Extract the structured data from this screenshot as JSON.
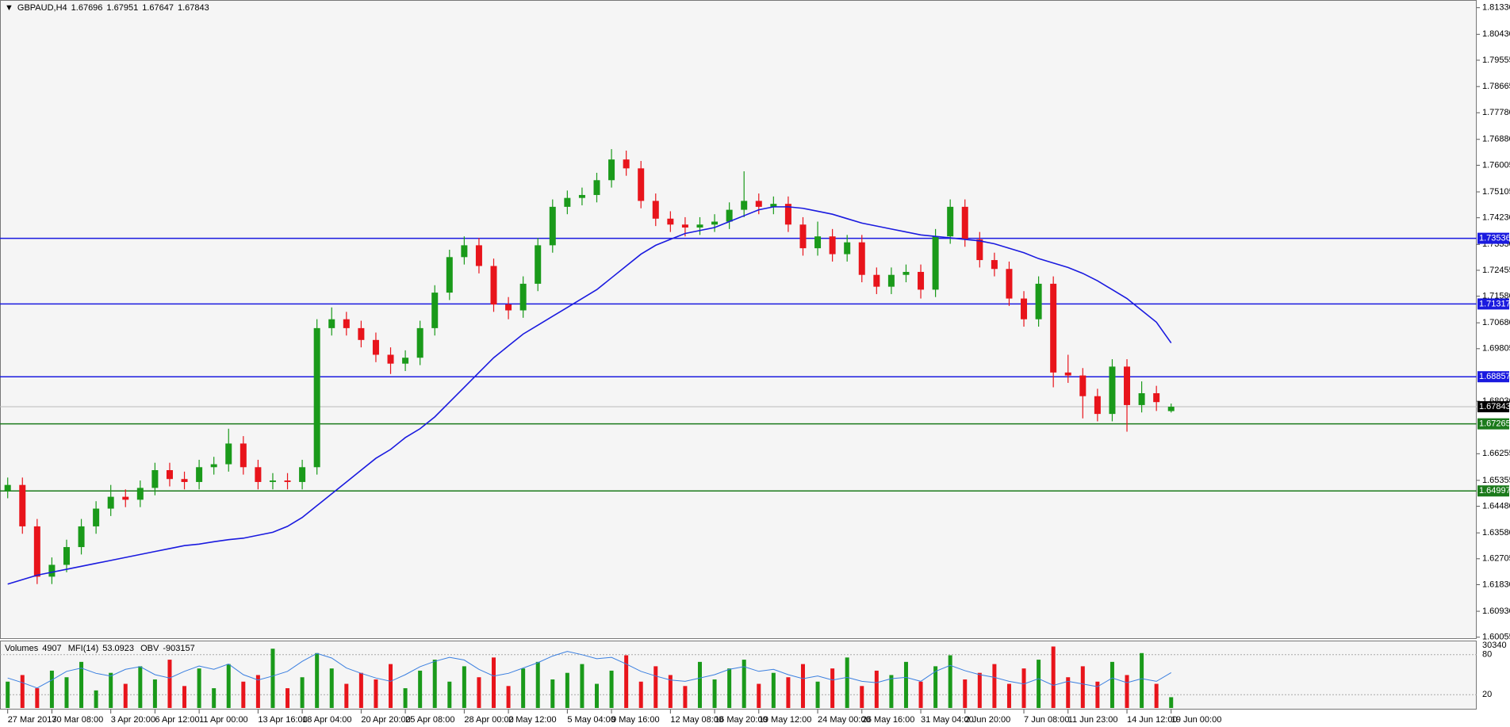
{
  "chart_data": {
    "type": "candlestick",
    "title": "GBPAUD,H4",
    "x": [
      "27 Mar 2017",
      null,
      null,
      "30 Mar 08:00",
      null,
      null,
      null,
      "3 Apr 20:00",
      null,
      null,
      "6 Apr 12:00",
      null,
      null,
      "11 Apr 00:00",
      null,
      null,
      null,
      "13 Apr 16:00",
      null,
      null,
      "18 Apr 04:00",
      null,
      null,
      null,
      "20 Apr 20:00",
      null,
      null,
      "25 Apr 08:00",
      null,
      null,
      null,
      "28 Apr 00:00",
      null,
      null,
      "2 May 12:00",
      null,
      null,
      null,
      "5 May 04:00",
      null,
      null,
      "9 May 16:00",
      null,
      null,
      null,
      "12 May 08:00",
      null,
      null,
      "16 May 20:00",
      null,
      null,
      "19 May 12:00",
      null,
      null,
      null,
      "24 May 00:00",
      null,
      null,
      "26 May 16:00",
      null,
      null,
      null,
      "31 May 04:00",
      null,
      null,
      "2 Jun 20:00",
      null,
      null,
      null,
      "7 Jun 08:00",
      null,
      null,
      "11 Jun 23:00",
      null,
      null,
      null,
      "14 Jun 12:00",
      null,
      null,
      "19 Jun 00:00"
    ],
    "open": [
      1.65,
      1.652,
      1.638,
      1.621,
      1.625,
      1.631,
      1.638,
      1.644,
      1.648,
      1.647,
      1.651,
      1.657,
      1.654,
      1.653,
      1.658,
      1.659,
      1.666,
      1.658,
      1.653,
      1.6535,
      1.653,
      1.658,
      1.705,
      1.708,
      1.705,
      1.701,
      1.696,
      1.693,
      1.695,
      1.705,
      1.717,
      1.729,
      1.733,
      1.726,
      1.713,
      1.711,
      1.72,
      1.733,
      1.746,
      1.749,
      1.75,
      1.755,
      1.762,
      1.759,
      1.748,
      1.742,
      1.74,
      1.739,
      1.74,
      1.741,
      1.745,
      1.748,
      1.746,
      1.747,
      1.74,
      1.732,
      1.736,
      1.73,
      1.734,
      1.723,
      1.719,
      1.723,
      1.724,
      1.718,
      1.736,
      1.746,
      1.735,
      1.728,
      1.725,
      1.715,
      1.708,
      1.72,
      1.69,
      1.689,
      1.682,
      1.676,
      1.692,
      1.679,
      1.683,
      1.67696
    ],
    "high": [
      1.6545,
      1.6545,
      1.6405,
      1.6275,
      1.6335,
      1.6405,
      1.6465,
      1.652,
      1.6505,
      1.6535,
      1.6595,
      1.6595,
      1.6565,
      1.6605,
      1.6615,
      1.671,
      1.6685,
      1.6605,
      1.656,
      1.656,
      1.6605,
      1.708,
      1.712,
      1.7105,
      1.7075,
      1.7035,
      1.6985,
      1.6975,
      1.7075,
      1.7195,
      1.7315,
      1.736,
      1.7355,
      1.7285,
      1.7155,
      1.7225,
      1.7355,
      1.7485,
      1.7515,
      1.7525,
      1.7575,
      1.7655,
      1.765,
      1.7615,
      1.7505,
      1.7445,
      1.7425,
      1.7425,
      1.7435,
      1.7475,
      1.758,
      1.7505,
      1.7495,
      1.7495,
      1.7425,
      1.741,
      1.7385,
      1.7365,
      1.7365,
      1.7255,
      1.7255,
      1.7265,
      1.7265,
      1.7385,
      1.7485,
      1.7485,
      1.7375,
      1.7305,
      1.7275,
      1.7175,
      1.7225,
      1.7225,
      1.696,
      1.6915,
      1.6845,
      1.6945,
      1.6945,
      1.687,
      1.6855,
      1.67951
    ],
    "low": [
      1.6475,
      1.6355,
      1.6185,
      1.6185,
      1.6225,
      1.6285,
      1.6355,
      1.6415,
      1.6445,
      1.6445,
      1.6485,
      1.6515,
      1.6505,
      1.6505,
      1.6555,
      1.6565,
      1.6555,
      1.6505,
      1.6505,
      1.6505,
      1.6505,
      1.6555,
      1.7025,
      1.7025,
      1.6985,
      1.6935,
      1.6895,
      1.6905,
      1.6925,
      1.7025,
      1.7145,
      1.7265,
      1.7235,
      1.7105,
      1.708,
      1.7085,
      1.7175,
      1.7305,
      1.7435,
      1.7465,
      1.7475,
      1.7525,
      1.7565,
      1.7455,
      1.7395,
      1.7375,
      1.736,
      1.7365,
      1.7375,
      1.7385,
      1.7425,
      1.7435,
      1.7435,
      1.7375,
      1.7295,
      1.7295,
      1.7275,
      1.7275,
      1.7205,
      1.7165,
      1.7165,
      1.7205,
      1.715,
      1.7155,
      1.7335,
      1.7325,
      1.7255,
      1.7225,
      1.7125,
      1.7055,
      1.7055,
      1.685,
      1.6865,
      1.6745,
      1.6735,
      1.6735,
      1.67,
      1.6765,
      1.677,
      1.67647
    ],
    "close": [
      1.652,
      1.638,
      1.621,
      1.625,
      1.631,
      1.638,
      1.644,
      1.648,
      1.647,
      1.651,
      1.657,
      1.654,
      1.653,
      1.658,
      1.659,
      1.666,
      1.658,
      1.653,
      1.6535,
      1.653,
      1.658,
      1.705,
      1.708,
      1.705,
      1.701,
      1.696,
      1.693,
      1.695,
      1.705,
      1.717,
      1.729,
      1.733,
      1.726,
      1.713,
      1.711,
      1.72,
      1.733,
      1.746,
      1.749,
      1.75,
      1.755,
      1.762,
      1.759,
      1.748,
      1.742,
      1.74,
      1.739,
      1.74,
      1.741,
      1.745,
      1.748,
      1.746,
      1.747,
      1.74,
      1.732,
      1.736,
      1.73,
      1.734,
      1.723,
      1.719,
      1.723,
      1.724,
      1.718,
      1.736,
      1.746,
      1.735,
      1.728,
      1.725,
      1.715,
      1.708,
      1.72,
      1.69,
      1.689,
      1.682,
      1.676,
      1.692,
      1.679,
      1.683,
      1.68,
      1.67843
    ],
    "up_color": "#1a9a1a",
    "down_color": "#e8141b",
    "ma": {
      "color": "#1a1adf",
      "values": [
        1.6185,
        1.62,
        1.6215,
        1.6225,
        1.6235,
        1.6245,
        1.6255,
        1.6265,
        1.6275,
        1.6285,
        1.6295,
        1.6305,
        1.6315,
        1.632,
        1.6328,
        1.6335,
        1.634,
        1.635,
        1.636,
        1.638,
        1.641,
        1.645,
        1.649,
        1.653,
        1.657,
        1.661,
        1.664,
        1.668,
        1.671,
        1.675,
        1.68,
        1.685,
        1.69,
        1.695,
        1.699,
        1.703,
        1.706,
        1.709,
        1.712,
        1.715,
        1.718,
        1.722,
        1.726,
        1.73,
        1.733,
        1.735,
        1.737,
        1.738,
        1.739,
        1.741,
        1.743,
        1.745,
        1.746,
        1.746,
        1.7455,
        1.7445,
        1.7435,
        1.742,
        1.7405,
        1.7395,
        1.7385,
        1.7375,
        1.7365,
        1.736,
        1.7355,
        1.735,
        1.7345,
        1.7335,
        1.732,
        1.7305,
        1.7285,
        1.727,
        1.7255,
        1.7235,
        1.721,
        1.718,
        1.715,
        1.711,
        1.707,
        1.7
      ]
    },
    "levels": [
      {
        "value": 1.73536,
        "color": "#1a1adf"
      },
      {
        "value": 1.71317,
        "color": "#1a1adf"
      },
      {
        "value": 1.68857,
        "color": "#1a1adf"
      },
      {
        "value": 1.67265,
        "color": "#1b7a1b"
      },
      {
        "value": 1.64997,
        "color": "#1b7a1b"
      }
    ],
    "ylim": [
      1.6002,
      1.8159
    ],
    "yticks": [
      {
        "value": 1.8133,
        "label": "1.81330"
      },
      {
        "value": 1.8043,
        "label": "1.80430"
      },
      1.79555,
      1.78665,
      {
        "value": 1.7778,
        "label": "1.77780"
      },
      {
        "value": 1.7688,
        "label": "1.76880"
      },
      1.76005,
      1.75105,
      {
        "value": 1.7423,
        "label": "1.74230"
      },
      {
        "value": 1.7333,
        "label": "1.73330"
      },
      1.72455,
      {
        "value": 1.7158,
        "label": "1.71580"
      },
      {
        "value": 1.7068,
        "label": "1.70680"
      },
      1.69805,
      {
        "value": 1.6803,
        "label": "1.68030"
      },
      1.66255,
      1.65355,
      {
        "value": 1.6448,
        "label": "1.64480"
      },
      {
        "value": 1.6358,
        "label": "1.63580"
      },
      1.62705,
      {
        "value": 1.6183,
        "label": "1.61830"
      },
      {
        "value": 1.6093,
        "label": "1.60930"
      },
      1.60055
    ],
    "indicators": {
      "volume_label": "Volumes",
      "mfi_label": "MFI(14)",
      "obv_label": "OBV",
      "obv": -903157,
      "volume": [
        12000,
        15000,
        9000,
        17000,
        14000,
        21000,
        8000,
        16000,
        11000,
        19000,
        13000,
        22000,
        10000,
        18000,
        9000,
        20000,
        12000,
        15000,
        27000,
        9000,
        14000,
        25000,
        18000,
        11000,
        16000,
        13000,
        20000,
        9000,
        17000,
        22000,
        12000,
        19000,
        14000,
        23000,
        10000,
        18000,
        21000,
        13000,
        16000,
        20000,
        11000,
        17000,
        24000,
        12000,
        19000,
        15000,
        10000,
        21000,
        13000,
        18000,
        22000,
        11000,
        16000,
        14000,
        20000,
        12000,
        18000,
        23000,
        10000,
        17000,
        15000,
        21000,
        12000,
        19000,
        24000,
        13000,
        16000,
        20000,
        11000,
        18000,
        22000,
        28000,
        14000,
        19000,
        12000,
        21000,
        15000,
        25000,
        11000,
        4907
      ],
      "volume_ylim": [
        0,
        30340
      ],
      "volume_ticks": [
        30340
      ],
      "mfi": [
        45,
        38,
        30,
        42,
        55,
        60,
        52,
        48,
        58,
        62,
        50,
        45,
        55,
        63,
        58,
        66,
        50,
        42,
        48,
        55,
        70,
        82,
        75,
        60,
        52,
        45,
        40,
        50,
        62,
        70,
        76,
        72,
        58,
        48,
        52,
        60,
        68,
        78,
        85,
        80,
        74,
        76,
        66,
        55,
        48,
        42,
        40,
        45,
        50,
        58,
        62,
        55,
        58,
        50,
        44,
        48,
        42,
        46,
        40,
        38,
        44,
        46,
        40,
        55,
        64,
        56,
        50,
        46,
        40,
        36,
        44,
        34,
        40,
        36,
        32,
        45,
        38,
        44,
        40,
        53.0923
      ],
      "mfi_color": "#3a7fe0",
      "mfi_ylim": [
        0,
        100
      ],
      "mfi_ticks": [
        20,
        80
      ]
    }
  }
}
